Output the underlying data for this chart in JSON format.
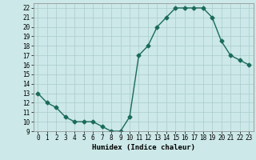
{
  "x": [
    0,
    1,
    2,
    3,
    4,
    5,
    6,
    7,
    8,
    9,
    10,
    11,
    12,
    13,
    14,
    15,
    16,
    17,
    18,
    19,
    20,
    21,
    22,
    23
  ],
  "y": [
    13,
    12,
    11.5,
    10.5,
    10,
    10,
    10,
    9.5,
    9,
    9,
    10.5,
    17,
    18,
    20,
    21,
    22,
    22,
    22,
    22,
    21,
    18.5,
    17,
    16.5,
    16
  ],
  "line_color": "#1a6b5a",
  "marker": "D",
  "markersize": 2.5,
  "linewidth": 1.0,
  "bg_color": "#cce8e8",
  "grid_color": "#aacccc",
  "xlabel": "Humidex (Indice chaleur)",
  "xlim": [
    -0.5,
    23.5
  ],
  "ylim": [
    9,
    22.5
  ],
  "yticks": [
    9,
    10,
    11,
    12,
    13,
    14,
    15,
    16,
    17,
    18,
    19,
    20,
    21,
    22
  ],
  "xticks": [
    0,
    1,
    2,
    3,
    4,
    5,
    6,
    7,
    8,
    9,
    10,
    11,
    12,
    13,
    14,
    15,
    16,
    17,
    18,
    19,
    20,
    21,
    22,
    23
  ],
  "label_fontsize": 6.5,
  "tick_fontsize": 5.5
}
